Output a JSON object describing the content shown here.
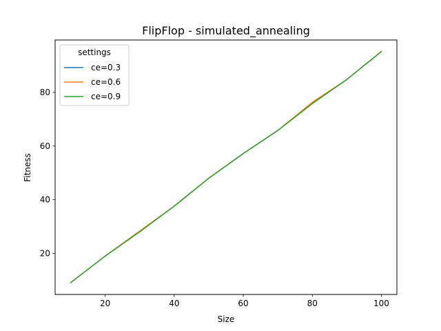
{
  "chart_data": {
    "type": "line",
    "title": "FlipFlop - simulated_annealing",
    "xlabel": "Size",
    "ylabel": "Fitness",
    "x": [
      10,
      20,
      30,
      40,
      50,
      60,
      70,
      80,
      90,
      100
    ],
    "xlim": [
      5.5,
      104.5
    ],
    "ylim": [
      4.7,
      99.5
    ],
    "xticks": [
      20,
      40,
      60,
      80,
      100
    ],
    "yticks": [
      20,
      40,
      60,
      80
    ],
    "grid": false,
    "legend": {
      "title": "settings",
      "placement": "top-left"
    },
    "series": [
      {
        "name": "ce=0.3",
        "color": "#1f77b4",
        "values": [
          9.1,
          19.0,
          28.3,
          37.6,
          48.0,
          57.2,
          65.8,
          75.9,
          84.8,
          95.2
        ]
      },
      {
        "name": "ce=0.6",
        "color": "#ff7f0e",
        "values": [
          9.1,
          19.0,
          28.3,
          37.6,
          48.0,
          57.2,
          65.8,
          76.3,
          84.8,
          95.2
        ]
      },
      {
        "name": "ce=0.9",
        "color": "#2ca02c",
        "values": [
          9.1,
          19.0,
          28.0,
          37.6,
          48.0,
          57.2,
          65.8,
          75.8,
          84.8,
          95.2
        ]
      }
    ]
  }
}
